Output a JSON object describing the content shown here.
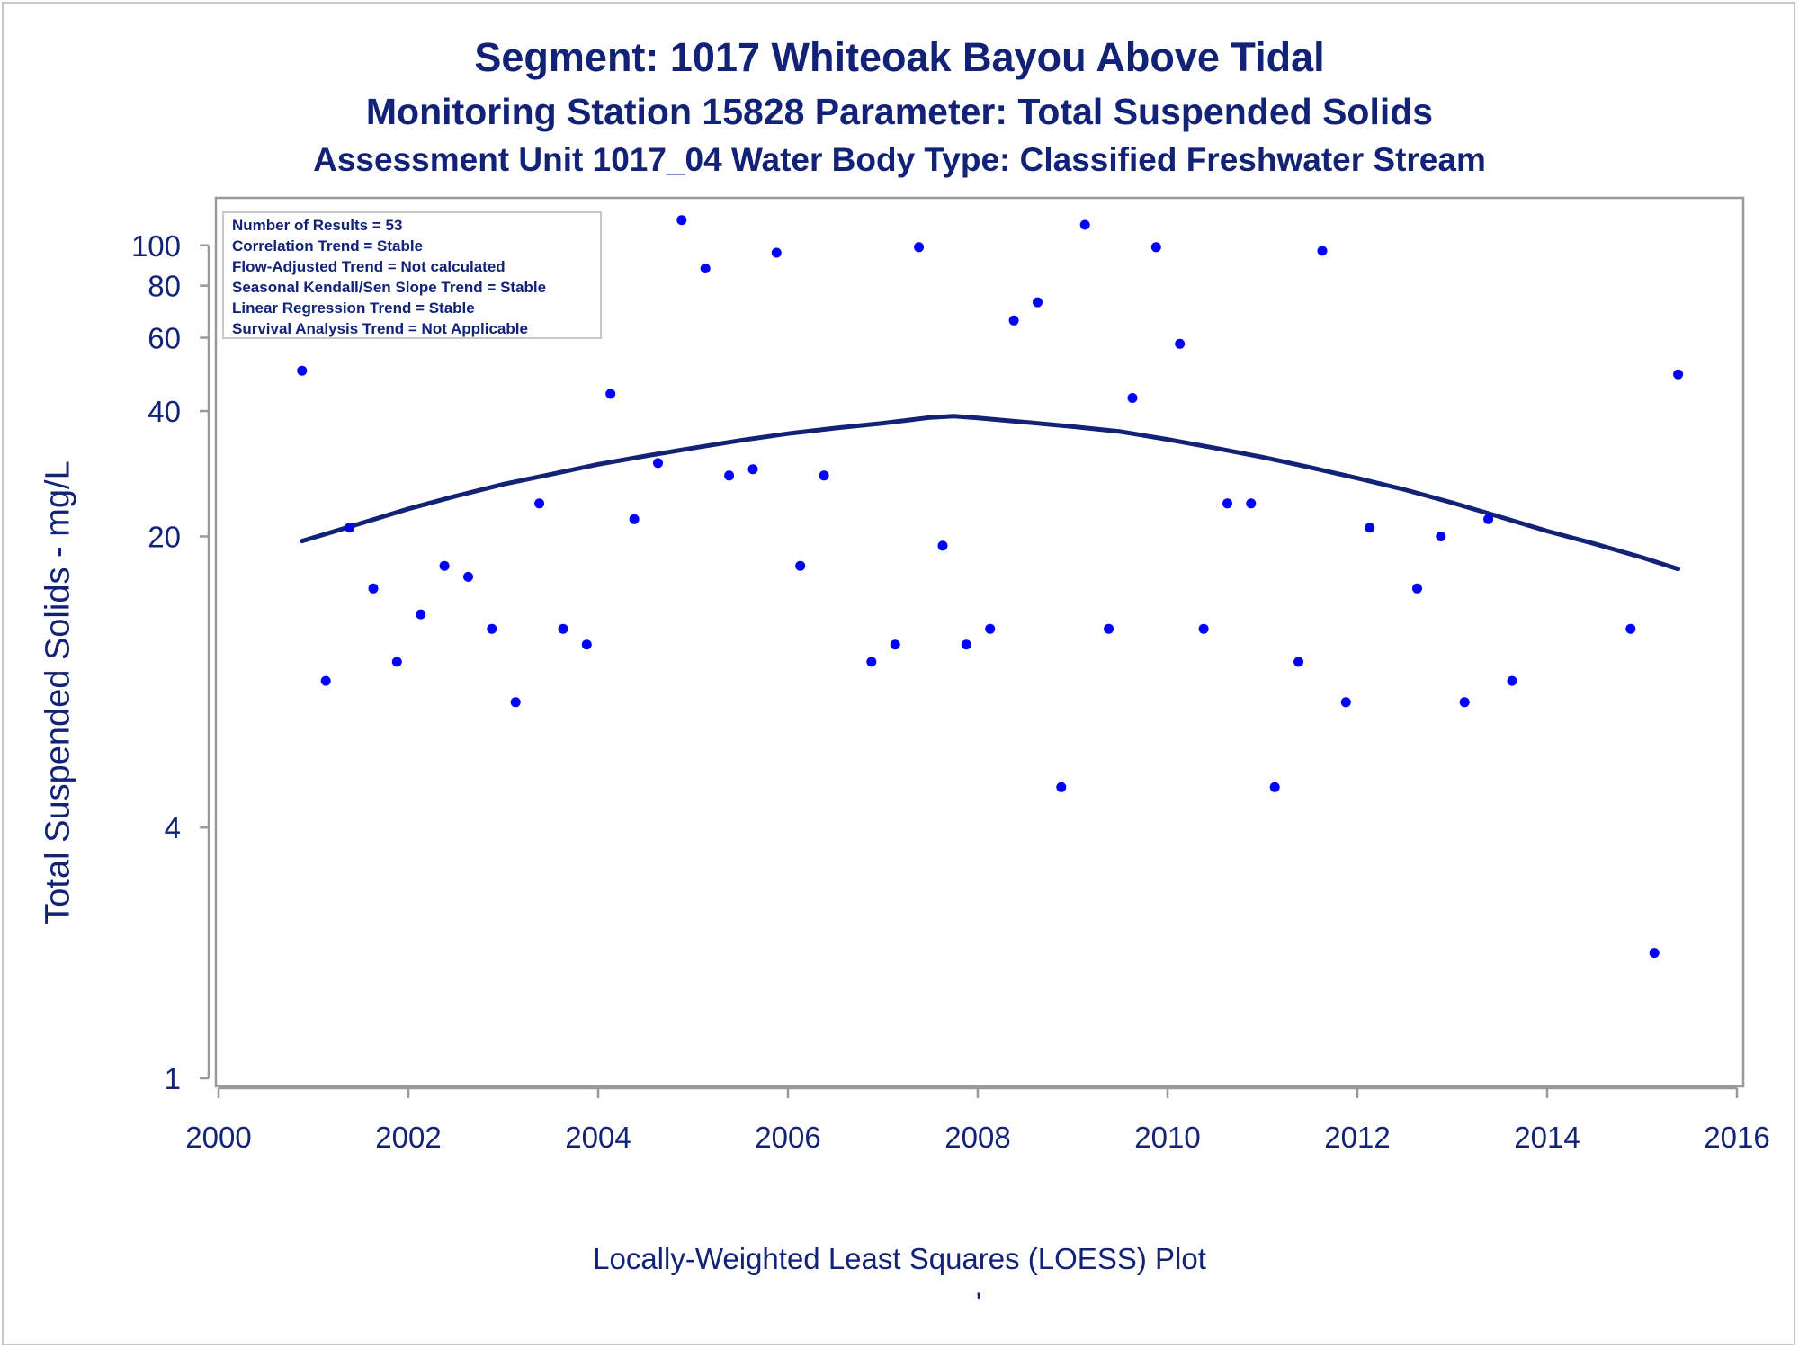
{
  "chart_data": {
    "type": "scatter",
    "title": "Segment: 1017  Whiteoak Bayou Above Tidal",
    "subtitle": "Monitoring Station 15828 Parameter: Total Suspended Solids",
    "subtitle2": "Assessment Unit 1017_04   Water Body Type: Classified Freshwater Stream",
    "xlabel": "",
    "ylabel": "Total Suspended Solids - mg/L",
    "footnote": "Locally-Weighted Least Squares (LOESS) Plot",
    "footnote_mark": "'",
    "xlim": [
      2000,
      2016
    ],
    "ylim": [
      1,
      130
    ],
    "y_scale": "log",
    "x_ticks": [
      "2000",
      "2002",
      "2004",
      "2006",
      "2008",
      "2010",
      "2012",
      "2014",
      "2016"
    ],
    "y_ticks": [
      "1",
      "4",
      "20",
      "40",
      "60",
      "80",
      "100"
    ],
    "grid": false,
    "legend_position": "top-left",
    "stats_box": [
      "Number of Results = 53",
      "Correlation Trend = Stable",
      "Flow-Adjusted Trend = Not calculated",
      "Seasonal Kendall/Sen Slope Trend = Stable",
      "Linear Regression Trend = Stable",
      "Survival Analysis Trend = Not Applicable"
    ],
    "colors": {
      "points": "#0000ff",
      "loess": "#112277",
      "text": "#112277",
      "axis": "#999999"
    },
    "series": [
      {
        "type": "scatter",
        "x": [
          2000.88,
          2001.13,
          2001.38,
          2001.63,
          2001.88,
          2002.13,
          2002.38,
          2002.63,
          2002.88,
          2003.13,
          2003.38,
          2003.63,
          2003.88,
          2004.13,
          2004.38,
          2004.63,
          2004.88,
          2005.13,
          2005.38,
          2005.63,
          2005.88,
          2006.13,
          2006.38,
          2006.88,
          2007.13,
          2007.38,
          2007.63,
          2007.88,
          2008.13,
          2008.38,
          2008.63,
          2008.88,
          2009.13,
          2009.38,
          2009.63,
          2009.88,
          2010.13,
          2010.38,
          2010.63,
          2010.88,
          2011.13,
          2011.38,
          2011.63,
          2011.88,
          2012.13,
          2012.63,
          2012.88,
          2013.13,
          2013.38,
          2013.63,
          2014.88,
          2015.13,
          2015.38
        ],
        "y": [
          50,
          9,
          21,
          15,
          10,
          13,
          17,
          16,
          12,
          8,
          24,
          12,
          11,
          44,
          22,
          30,
          115,
          88,
          28,
          29,
          96,
          17,
          28,
          10,
          11,
          99,
          19,
          11,
          12,
          66,
          73,
          5,
          112,
          12,
          43,
          99,
          58,
          12,
          24,
          24,
          5,
          10,
          97,
          8,
          21,
          15,
          20,
          8,
          22,
          9,
          12,
          2,
          49
        ]
      },
      {
        "type": "line",
        "name": "LOESS",
        "x": [
          2000.88,
          2001.5,
          2002,
          2002.5,
          2003,
          2003.5,
          2004,
          2004.5,
          2005,
          2005.5,
          2006,
          2006.5,
          2007,
          2007.5,
          2007.75,
          2008,
          2008.5,
          2009,
          2009.5,
          2010,
          2010.5,
          2011,
          2011.5,
          2012,
          2012.5,
          2013,
          2013.5,
          2014,
          2014.5,
          2015,
          2015.38
        ],
        "y": [
          19.5,
          21.5,
          23.3,
          25,
          26.7,
          28.2,
          29.8,
          31.2,
          32.6,
          34.0,
          35.3,
          36.4,
          37.4,
          38.6,
          38.9,
          38.5,
          37.6,
          36.7,
          35.7,
          34.2,
          32.6,
          31.0,
          29.3,
          27.6,
          25.9,
          24.1,
          22.3,
          20.6,
          19.2,
          17.8,
          16.7
        ]
      }
    ]
  }
}
